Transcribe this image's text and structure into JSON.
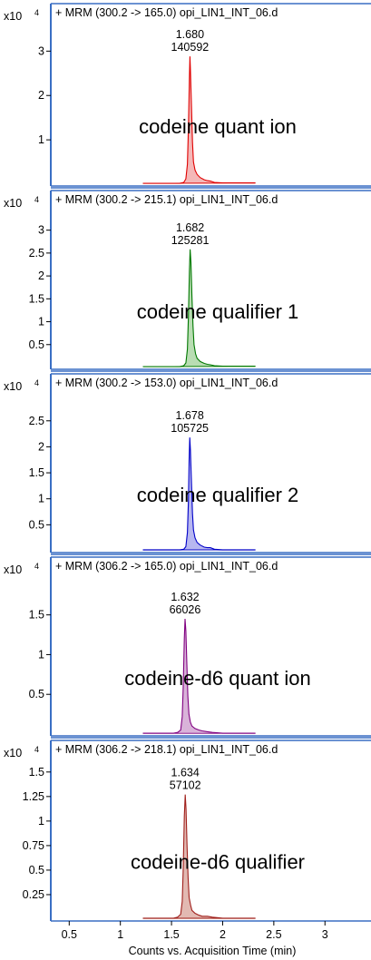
{
  "chart_data": {
    "type": "area",
    "x_axis": {
      "label": "Counts vs. Acquisition Time (min)",
      "range": [
        0.32,
        3.45
      ],
      "ticks": [
        0.5,
        1,
        1.5,
        2,
        2.5,
        3
      ],
      "tick_labels": [
        "0.5",
        "1",
        "1.5",
        "2",
        "2.5",
        "3"
      ]
    },
    "y_multiplier_label": "x10",
    "y_multiplier_exponent": "4",
    "panels": [
      {
        "header": "+ MRM (300.2 -> 165.0) opi_LIN1_INT_06.d",
        "annotation": "codeine quant ion",
        "color": "#e00000",
        "fill": "#f4b8b8",
        "peak_rt": "1.680",
        "peak_area": "140592",
        "peak": {
          "x": 1.68,
          "y": 2.88
        },
        "ylim": [
          0,
          3.58
        ],
        "yticks": [
          1,
          2,
          3
        ],
        "ytick_labels": [
          "1",
          "2",
          "3"
        ],
        "series": {
          "x": [
            1.22,
            1.58,
            1.62,
            1.64,
            1.655,
            1.665,
            1.675,
            1.68,
            1.685,
            1.695,
            1.705,
            1.715,
            1.73,
            1.75,
            1.78,
            1.82,
            1.85,
            1.88,
            1.92,
            2.0,
            2.32
          ],
          "y": [
            0.02,
            0.02,
            0.04,
            0.12,
            0.45,
            1.25,
            2.4,
            2.88,
            2.6,
            1.75,
            0.95,
            0.5,
            0.32,
            0.22,
            0.15,
            0.1,
            0.08,
            0.07,
            0.04,
            0.03,
            0.03
          ]
        }
      },
      {
        "header": "+ MRM (300.2 -> 215.1) opi_LIN1_INT_06.d",
        "annotation": "codeine qualifier 1",
        "color": "#007800",
        "fill": "#b9ddb3",
        "peak_rt": "1.682",
        "peak_area": "125281",
        "peak": {
          "x": 1.682,
          "y": 2.58
        },
        "ylim": [
          0,
          3.35
        ],
        "yticks": [
          0.5,
          1,
          1.5,
          2,
          2.5,
          3
        ],
        "ytick_labels": [
          "0.5",
          "1",
          "1.5",
          "2",
          "2.5",
          "3"
        ],
        "series": {
          "x": [
            1.22,
            1.58,
            1.62,
            1.64,
            1.655,
            1.665,
            1.675,
            1.682,
            1.69,
            1.7,
            1.71,
            1.72,
            1.735,
            1.75,
            1.78,
            1.82,
            1.85,
            1.88,
            1.92,
            2.0,
            2.32
          ],
          "y": [
            0.02,
            0.02,
            0.04,
            0.1,
            0.4,
            1.1,
            2.1,
            2.58,
            2.3,
            1.55,
            0.9,
            0.5,
            0.3,
            0.2,
            0.13,
            0.09,
            0.07,
            0.06,
            0.04,
            0.03,
            0.03
          ]
        }
      },
      {
        "header": "+ MRM (300.2 -> 153.0) opi_LIN1_INT_06.d",
        "annotation": "codeine qualifier 2",
        "color": "#0000c8",
        "fill": "#b7b7f0",
        "peak_rt": "1.678",
        "peak_area": "105725",
        "peak": {
          "x": 1.678,
          "y": 2.18
        },
        "ylim": [
          0,
          2.95
        ],
        "yticks": [
          0.5,
          1,
          1.5,
          2,
          2.5
        ],
        "ytick_labels": [
          "0.5",
          "1",
          "1.5",
          "2",
          "2.5"
        ],
        "series": {
          "x": [
            1.22,
            1.58,
            1.62,
            1.64,
            1.655,
            1.665,
            1.672,
            1.678,
            1.685,
            1.695,
            1.705,
            1.715,
            1.73,
            1.75,
            1.78,
            1.82,
            1.85,
            1.88,
            1.92,
            2.0,
            2.32
          ],
          "y": [
            0.02,
            0.02,
            0.03,
            0.08,
            0.35,
            0.95,
            1.75,
            2.18,
            1.95,
            1.3,
            0.72,
            0.4,
            0.25,
            0.16,
            0.11,
            0.07,
            0.06,
            0.06,
            0.03,
            0.02,
            0.02
          ]
        }
      },
      {
        "header": "+ MRM (306.2 -> 165.0) opi_LIN1_INT_06.d",
        "annotation": "codeine-d6 quant ion",
        "color": "#800080",
        "fill": "#d9b3d9",
        "peak_rt": "1.632",
        "peak_area": "66026",
        "peak": {
          "x": 1.632,
          "y": 1.45
        },
        "ylim": [
          0,
          1.93
        ],
        "yticks": [
          0.5,
          1,
          1.5
        ],
        "ytick_labels": [
          "0.5",
          "1",
          "1.5"
        ],
        "series": {
          "x": [
            1.22,
            1.52,
            1.56,
            1.59,
            1.605,
            1.615,
            1.625,
            1.632,
            1.64,
            1.65,
            1.66,
            1.67,
            1.685,
            1.7,
            1.73,
            1.77,
            1.8,
            1.85,
            1.9,
            2.0,
            2.32
          ],
          "y": [
            0.01,
            0.01,
            0.02,
            0.05,
            0.22,
            0.6,
            1.2,
            1.45,
            1.3,
            0.88,
            0.48,
            0.25,
            0.15,
            0.1,
            0.07,
            0.05,
            0.04,
            0.03,
            0.02,
            0.01,
            0.01
          ]
        }
      },
      {
        "header": "+ MRM (306.2 -> 218.1) opi_LIN1_INT_06.d",
        "annotation": "codeine-d6 qualifier",
        "color": "#a0201c",
        "fill": "#e2b9b2",
        "peak_rt": "1.634",
        "peak_area": "57102",
        "peak": {
          "x": 1.634,
          "y": 1.27
        },
        "ylim": [
          0,
          1.6
        ],
        "yticks": [
          0.25,
          0.5,
          0.75,
          1,
          1.25,
          1.5
        ],
        "ytick_labels": [
          "0.25",
          "0.5",
          "0.75",
          "1",
          "1.25",
          "1.5"
        ],
        "series": {
          "x": [
            1.22,
            1.52,
            1.56,
            1.59,
            1.605,
            1.615,
            1.625,
            1.634,
            1.642,
            1.652,
            1.662,
            1.672,
            1.687,
            1.7,
            1.73,
            1.77,
            1.8,
            1.85,
            1.9,
            2.0,
            2.32
          ],
          "y": [
            0.01,
            0.01,
            0.02,
            0.05,
            0.18,
            0.52,
            1.05,
            1.27,
            1.12,
            0.75,
            0.42,
            0.22,
            0.14,
            0.09,
            0.06,
            0.04,
            0.03,
            0.03,
            0.02,
            0.01,
            0.01
          ]
        }
      }
    ]
  }
}
